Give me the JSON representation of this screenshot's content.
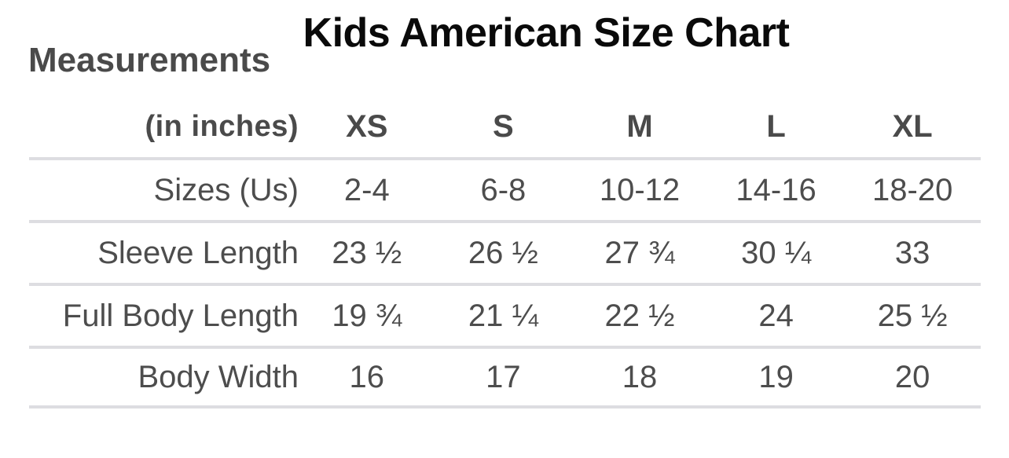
{
  "chart_data": {
    "type": "table",
    "title": "Kids American Size Chart",
    "corner_label": "Measurements",
    "unit_label": "(in inches)",
    "columns": [
      "XS",
      "S",
      "M",
      "L",
      "XL"
    ],
    "rows": [
      {
        "label": "Sizes (Us)",
        "values": [
          "2-4",
          "6-8",
          "10-12",
          "14-16",
          "18-20"
        ]
      },
      {
        "label": "Sleeve Length",
        "values": [
          "23 ½",
          "26 ½",
          "27 ¾",
          "30 ¼",
          "33"
        ]
      },
      {
        "label": "Full Body Length",
        "values": [
          "19 ¾",
          "21 ¼",
          "22 ½",
          "24",
          "25 ½"
        ]
      },
      {
        "label": "Body Width",
        "values": [
          "16",
          "17",
          "18",
          "19",
          "20"
        ]
      }
    ]
  },
  "colors": {
    "title_text": "#0a0a0a",
    "heading_text": "#4a4a4a",
    "cell_text": "#4d4d4d",
    "divider": "#dddde1",
    "background": "#ffffff"
  }
}
